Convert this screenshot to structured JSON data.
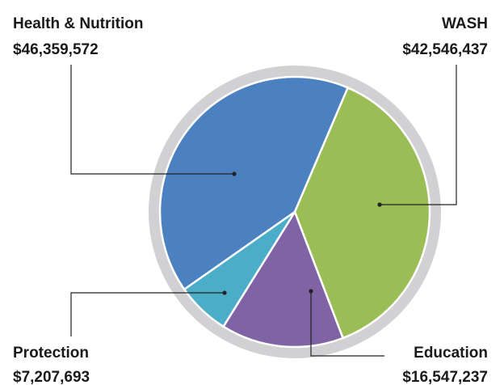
{
  "chart_data": {
    "type": "pie",
    "categories": [
      "Health & Nutrition",
      "WASH",
      "Education",
      "Protection"
    ],
    "values": [
      46359572,
      42546437,
      16547237,
      7207693
    ],
    "value_labels": [
      "$46,359,572",
      "$42,546,437",
      "$16,547,237",
      "$7,207,693"
    ],
    "colors": [
      "#4b80c1",
      "#9bbd56",
      "#7f63a4",
      "#4badc7"
    ]
  }
}
